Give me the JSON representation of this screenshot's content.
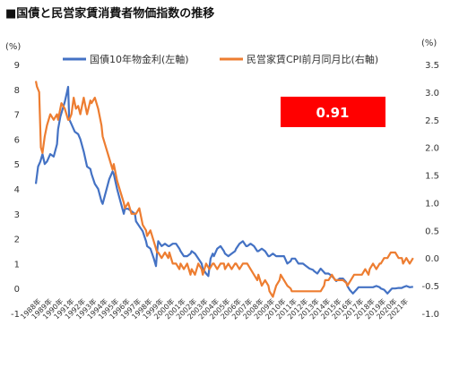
{
  "title": "■国債と民営家賃消費者物価指数の推移",
  "chart_data": {
    "type": "line",
    "title": "国債と民営家賃消費者物価指数の推移",
    "left_axis_unit": "(%)",
    "right_axis_unit": "(%)",
    "left_ylim": [
      -1,
      9
    ],
    "right_ylim": [
      -1.0,
      3.5
    ],
    "left_ticks": [
      "-1",
      "0",
      "1",
      "2",
      "3",
      "4",
      "5",
      "6",
      "7",
      "8",
      "9"
    ],
    "right_ticks": [
      "-1.0",
      "-0.5",
      "0.0",
      "0.5",
      "1.0",
      "1.5",
      "2.0",
      "2.5",
      "3.0",
      "3.5"
    ],
    "x_year_labels": [
      "1988年",
      "1989年",
      "1990年",
      "1991年",
      "1992年",
      "1993年",
      "1994年",
      "1995年",
      "1996年",
      "1997年",
      "1998年",
      "1999年",
      "2000年",
      "2001年",
      "2002年",
      "2003年",
      "2004年",
      "2005年",
      "2006年",
      "2007年",
      "2008年",
      "2009年",
      "2010年",
      "2011年",
      "2012年",
      "2013年",
      "2014年",
      "2015年",
      "2016年",
      "2017年",
      "2018年",
      "2019年",
      "2020年",
      "2021年"
    ],
    "legend_position": "top",
    "series": [
      {
        "name": "国債10年物金利(左軸)",
        "axis": "left",
        "color": "#4472c4",
        "points": [
          [
            1988.0,
            4.2
          ],
          [
            1988.2,
            4.9
          ],
          [
            1988.4,
            5.1
          ],
          [
            1988.6,
            5.4
          ],
          [
            1988.8,
            5.0
          ],
          [
            1989.0,
            5.1
          ],
          [
            1989.3,
            5.4
          ],
          [
            1989.6,
            5.3
          ],
          [
            1989.9,
            5.8
          ],
          [
            1990.0,
            6.4
          ],
          [
            1990.2,
            6.9
          ],
          [
            1990.4,
            7.2
          ],
          [
            1990.6,
            7.5
          ],
          [
            1990.8,
            7.9
          ],
          [
            1990.9,
            8.1
          ],
          [
            1991.0,
            6.8
          ],
          [
            1991.2,
            6.6
          ],
          [
            1991.5,
            6.3
          ],
          [
            1991.8,
            6.2
          ],
          [
            1992.0,
            6.0
          ],
          [
            1992.3,
            5.5
          ],
          [
            1992.6,
            4.9
          ],
          [
            1992.9,
            4.8
          ],
          [
            1993.0,
            4.6
          ],
          [
            1993.3,
            4.2
          ],
          [
            1993.6,
            4.0
          ],
          [
            1993.9,
            3.5
          ],
          [
            1994.0,
            3.4
          ],
          [
            1994.3,
            3.9
          ],
          [
            1994.6,
            4.4
          ],
          [
            1994.9,
            4.7
          ],
          [
            1995.0,
            4.6
          ],
          [
            1995.3,
            4.0
          ],
          [
            1995.6,
            3.5
          ],
          [
            1995.9,
            3.0
          ],
          [
            1996.0,
            3.2
          ],
          [
            1996.3,
            3.2
          ],
          [
            1996.6,
            3.1
          ],
          [
            1996.9,
            3.0
          ],
          [
            1997.0,
            2.7
          ],
          [
            1997.3,
            2.5
          ],
          [
            1997.6,
            2.3
          ],
          [
            1997.9,
            1.9
          ],
          [
            1998.0,
            1.7
          ],
          [
            1998.3,
            1.6
          ],
          [
            1998.6,
            1.2
          ],
          [
            1998.8,
            0.9
          ],
          [
            1998.9,
            1.5
          ],
          [
            1999.0,
            1.9
          ],
          [
            1999.3,
            1.7
          ],
          [
            1999.6,
            1.8
          ],
          [
            1999.9,
            1.7
          ],
          [
            2000.0,
            1.7
          ],
          [
            2000.3,
            1.8
          ],
          [
            2000.6,
            1.8
          ],
          [
            2000.9,
            1.6
          ],
          [
            2001.0,
            1.5
          ],
          [
            2001.3,
            1.3
          ],
          [
            2001.6,
            1.3
          ],
          [
            2001.9,
            1.4
          ],
          [
            2002.0,
            1.5
          ],
          [
            2002.3,
            1.4
          ],
          [
            2002.6,
            1.2
          ],
          [
            2002.9,
            1.0
          ],
          [
            2003.0,
            0.8
          ],
          [
            2003.3,
            0.6
          ],
          [
            2003.5,
            0.5
          ],
          [
            2003.7,
            1.2
          ],
          [
            2003.9,
            1.4
          ],
          [
            2004.0,
            1.3
          ],
          [
            2004.3,
            1.6
          ],
          [
            2004.6,
            1.7
          ],
          [
            2004.9,
            1.5
          ],
          [
            2005.0,
            1.4
          ],
          [
            2005.3,
            1.3
          ],
          [
            2005.6,
            1.4
          ],
          [
            2005.9,
            1.5
          ],
          [
            2006.0,
            1.6
          ],
          [
            2006.3,
            1.8
          ],
          [
            2006.6,
            1.9
          ],
          [
            2006.9,
            1.7
          ],
          [
            2007.0,
            1.7
          ],
          [
            2007.3,
            1.8
          ],
          [
            2007.6,
            1.7
          ],
          [
            2007.9,
            1.5
          ],
          [
            2008.0,
            1.5
          ],
          [
            2008.3,
            1.6
          ],
          [
            2008.6,
            1.5
          ],
          [
            2008.9,
            1.3
          ],
          [
            2009.0,
            1.3
          ],
          [
            2009.3,
            1.4
          ],
          [
            2009.6,
            1.3
          ],
          [
            2009.9,
            1.3
          ],
          [
            2010.0,
            1.3
          ],
          [
            2010.3,
            1.3
          ],
          [
            2010.6,
            1.0
          ],
          [
            2010.9,
            1.1
          ],
          [
            2011.0,
            1.2
          ],
          [
            2011.3,
            1.2
          ],
          [
            2011.6,
            1.0
          ],
          [
            2011.9,
            1.0
          ],
          [
            2012.0,
            1.0
          ],
          [
            2012.3,
            0.9
          ],
          [
            2012.6,
            0.8
          ],
          [
            2012.9,
            0.75
          ],
          [
            2013.0,
            0.7
          ],
          [
            2013.3,
            0.6
          ],
          [
            2013.6,
            0.8
          ],
          [
            2013.9,
            0.65
          ],
          [
            2014.0,
            0.6
          ],
          [
            2014.3,
            0.6
          ],
          [
            2014.6,
            0.5
          ],
          [
            2014.9,
            0.35
          ],
          [
            2015.0,
            0.3
          ],
          [
            2015.3,
            0.4
          ],
          [
            2015.6,
            0.4
          ],
          [
            2015.9,
            0.25
          ],
          [
            2016.0,
            0.1
          ],
          [
            2016.2,
            -0.05
          ],
          [
            2016.5,
            -0.2
          ],
          [
            2016.8,
            -0.05
          ],
          [
            2017.0,
            0.05
          ],
          [
            2017.3,
            0.05
          ],
          [
            2017.6,
            0.05
          ],
          [
            2017.9,
            0.05
          ],
          [
            2018.0,
            0.05
          ],
          [
            2018.3,
            0.05
          ],
          [
            2018.6,
            0.1
          ],
          [
            2018.9,
            0.05
          ],
          [
            2019.0,
            0.0
          ],
          [
            2019.3,
            -0.05
          ],
          [
            2019.6,
            -0.2
          ],
          [
            2019.9,
            -0.05
          ],
          [
            2020.0,
            0.0
          ],
          [
            2020.3,
            0.0
          ],
          [
            2020.6,
            0.02
          ],
          [
            2020.9,
            0.02
          ],
          [
            2021.0,
            0.05
          ],
          [
            2021.3,
            0.1
          ],
          [
            2021.6,
            0.05
          ],
          [
            2021.9,
            0.07
          ]
        ]
      },
      {
        "name": "民営家賃CPI前月同月比(右軸)",
        "axis": "right",
        "color": "#ed7d31",
        "points": [
          [
            1988.0,
            3.2
          ],
          [
            1988.1,
            3.1
          ],
          [
            1988.3,
            3.0
          ],
          [
            1988.45,
            2.0
          ],
          [
            1988.6,
            1.9
          ],
          [
            1988.8,
            2.2
          ],
          [
            1989.0,
            2.4
          ],
          [
            1989.3,
            2.6
          ],
          [
            1989.6,
            2.5
          ],
          [
            1989.9,
            2.6
          ],
          [
            1990.0,
            2.5
          ],
          [
            1990.3,
            2.8
          ],
          [
            1990.6,
            2.7
          ],
          [
            1990.9,
            2.5
          ],
          [
            1991.0,
            2.5
          ],
          [
            1991.2,
            2.6
          ],
          [
            1991.4,
            2.9
          ],
          [
            1991.6,
            2.7
          ],
          [
            1991.8,
            2.75
          ],
          [
            1992.0,
            2.6
          ],
          [
            1992.3,
            2.9
          ],
          [
            1992.6,
            2.6
          ],
          [
            1992.9,
            2.85
          ],
          [
            1993.0,
            2.8
          ],
          [
            1993.3,
            2.9
          ],
          [
            1993.6,
            2.7
          ],
          [
            1993.9,
            2.4
          ],
          [
            1994.0,
            2.2
          ],
          [
            1994.3,
            2.0
          ],
          [
            1994.6,
            1.8
          ],
          [
            1994.9,
            1.6
          ],
          [
            1995.0,
            1.7
          ],
          [
            1995.3,
            1.4
          ],
          [
            1995.6,
            1.2
          ],
          [
            1995.9,
            1.0
          ],
          [
            1996.0,
            0.9
          ],
          [
            1996.3,
            1.0
          ],
          [
            1996.6,
            0.8
          ],
          [
            1996.9,
            0.8
          ],
          [
            1997.0,
            0.8
          ],
          [
            1997.3,
            0.9
          ],
          [
            1997.6,
            0.6
          ],
          [
            1997.9,
            0.5
          ],
          [
            1998.0,
            0.4
          ],
          [
            1998.3,
            0.5
          ],
          [
            1998.6,
            0.3
          ],
          [
            1998.9,
            0.1
          ],
          [
            1999.0,
            0.1
          ],
          [
            1999.3,
            0.0
          ],
          [
            1999.6,
            0.1
          ],
          [
            1999.9,
            0.0
          ],
          [
            2000.0,
            0.1
          ],
          [
            2000.3,
            -0.1
          ],
          [
            2000.6,
            -0.1
          ],
          [
            2000.9,
            -0.2
          ],
          [
            2001.0,
            -0.1
          ],
          [
            2001.3,
            -0.2
          ],
          [
            2001.6,
            -0.1
          ],
          [
            2001.9,
            -0.3
          ],
          [
            2002.0,
            -0.2
          ],
          [
            2002.3,
            -0.3
          ],
          [
            2002.6,
            -0.1
          ],
          [
            2002.9,
            -0.2
          ],
          [
            2003.0,
            -0.3
          ],
          [
            2003.3,
            -0.1
          ],
          [
            2003.6,
            -0.2
          ],
          [
            2003.9,
            -0.1
          ],
          [
            2004.0,
            -0.1
          ],
          [
            2004.3,
            -0.2
          ],
          [
            2004.6,
            -0.1
          ],
          [
            2004.9,
            -0.1
          ],
          [
            2005.0,
            -0.2
          ],
          [
            2005.3,
            -0.1
          ],
          [
            2005.6,
            -0.2
          ],
          [
            2005.9,
            -0.1
          ],
          [
            2006.0,
            -0.1
          ],
          [
            2006.3,
            -0.2
          ],
          [
            2006.6,
            -0.1
          ],
          [
            2006.9,
            -0.1
          ],
          [
            2007.0,
            -0.1
          ],
          [
            2007.3,
            -0.2
          ],
          [
            2007.6,
            -0.3
          ],
          [
            2007.9,
            -0.4
          ],
          [
            2008.0,
            -0.3
          ],
          [
            2008.3,
            -0.5
          ],
          [
            2008.6,
            -0.4
          ],
          [
            2008.9,
            -0.5
          ],
          [
            2009.0,
            -0.6
          ],
          [
            2009.3,
            -0.7
          ],
          [
            2009.6,
            -0.5
          ],
          [
            2009.9,
            -0.4
          ],
          [
            2010.0,
            -0.3
          ],
          [
            2010.3,
            -0.4
          ],
          [
            2010.6,
            -0.5
          ],
          [
            2010.9,
            -0.55
          ],
          [
            2011.0,
            -0.6
          ],
          [
            2011.3,
            -0.6
          ],
          [
            2011.6,
            -0.6
          ],
          [
            2011.9,
            -0.6
          ],
          [
            2012.0,
            -0.6
          ],
          [
            2012.3,
            -0.6
          ],
          [
            2012.6,
            -0.6
          ],
          [
            2012.9,
            -0.6
          ],
          [
            2013.0,
            -0.6
          ],
          [
            2013.3,
            -0.6
          ],
          [
            2013.6,
            -0.6
          ],
          [
            2013.9,
            -0.5
          ],
          [
            2014.0,
            -0.4
          ],
          [
            2014.3,
            -0.4
          ],
          [
            2014.6,
            -0.3
          ],
          [
            2014.9,
            -0.4
          ],
          [
            2015.0,
            -0.4
          ],
          [
            2015.3,
            -0.4
          ],
          [
            2015.6,
            -0.4
          ],
          [
            2015.9,
            -0.45
          ],
          [
            2016.0,
            -0.5
          ],
          [
            2016.3,
            -0.4
          ],
          [
            2016.6,
            -0.3
          ],
          [
            2016.9,
            -0.3
          ],
          [
            2017.0,
            -0.3
          ],
          [
            2017.3,
            -0.3
          ],
          [
            2017.6,
            -0.2
          ],
          [
            2017.9,
            -0.3
          ],
          [
            2018.0,
            -0.2
          ],
          [
            2018.3,
            -0.1
          ],
          [
            2018.6,
            -0.2
          ],
          [
            2018.9,
            -0.1
          ],
          [
            2019.0,
            -0.1
          ],
          [
            2019.3,
            0.0
          ],
          [
            2019.6,
            0.0
          ],
          [
            2019.9,
            0.1
          ],
          [
            2020.0,
            0.1
          ],
          [
            2020.3,
            0.1
          ],
          [
            2020.6,
            0.0
          ],
          [
            2020.9,
            0.0
          ],
          [
            2021.0,
            -0.1
          ],
          [
            2021.3,
            0.0
          ],
          [
            2021.6,
            -0.1
          ],
          [
            2021.9,
            0.0
          ]
        ]
      }
    ],
    "annotation": {
      "text": "0.91",
      "background": "#ff0000",
      "color": "#ffffff"
    },
    "grid": false
  }
}
